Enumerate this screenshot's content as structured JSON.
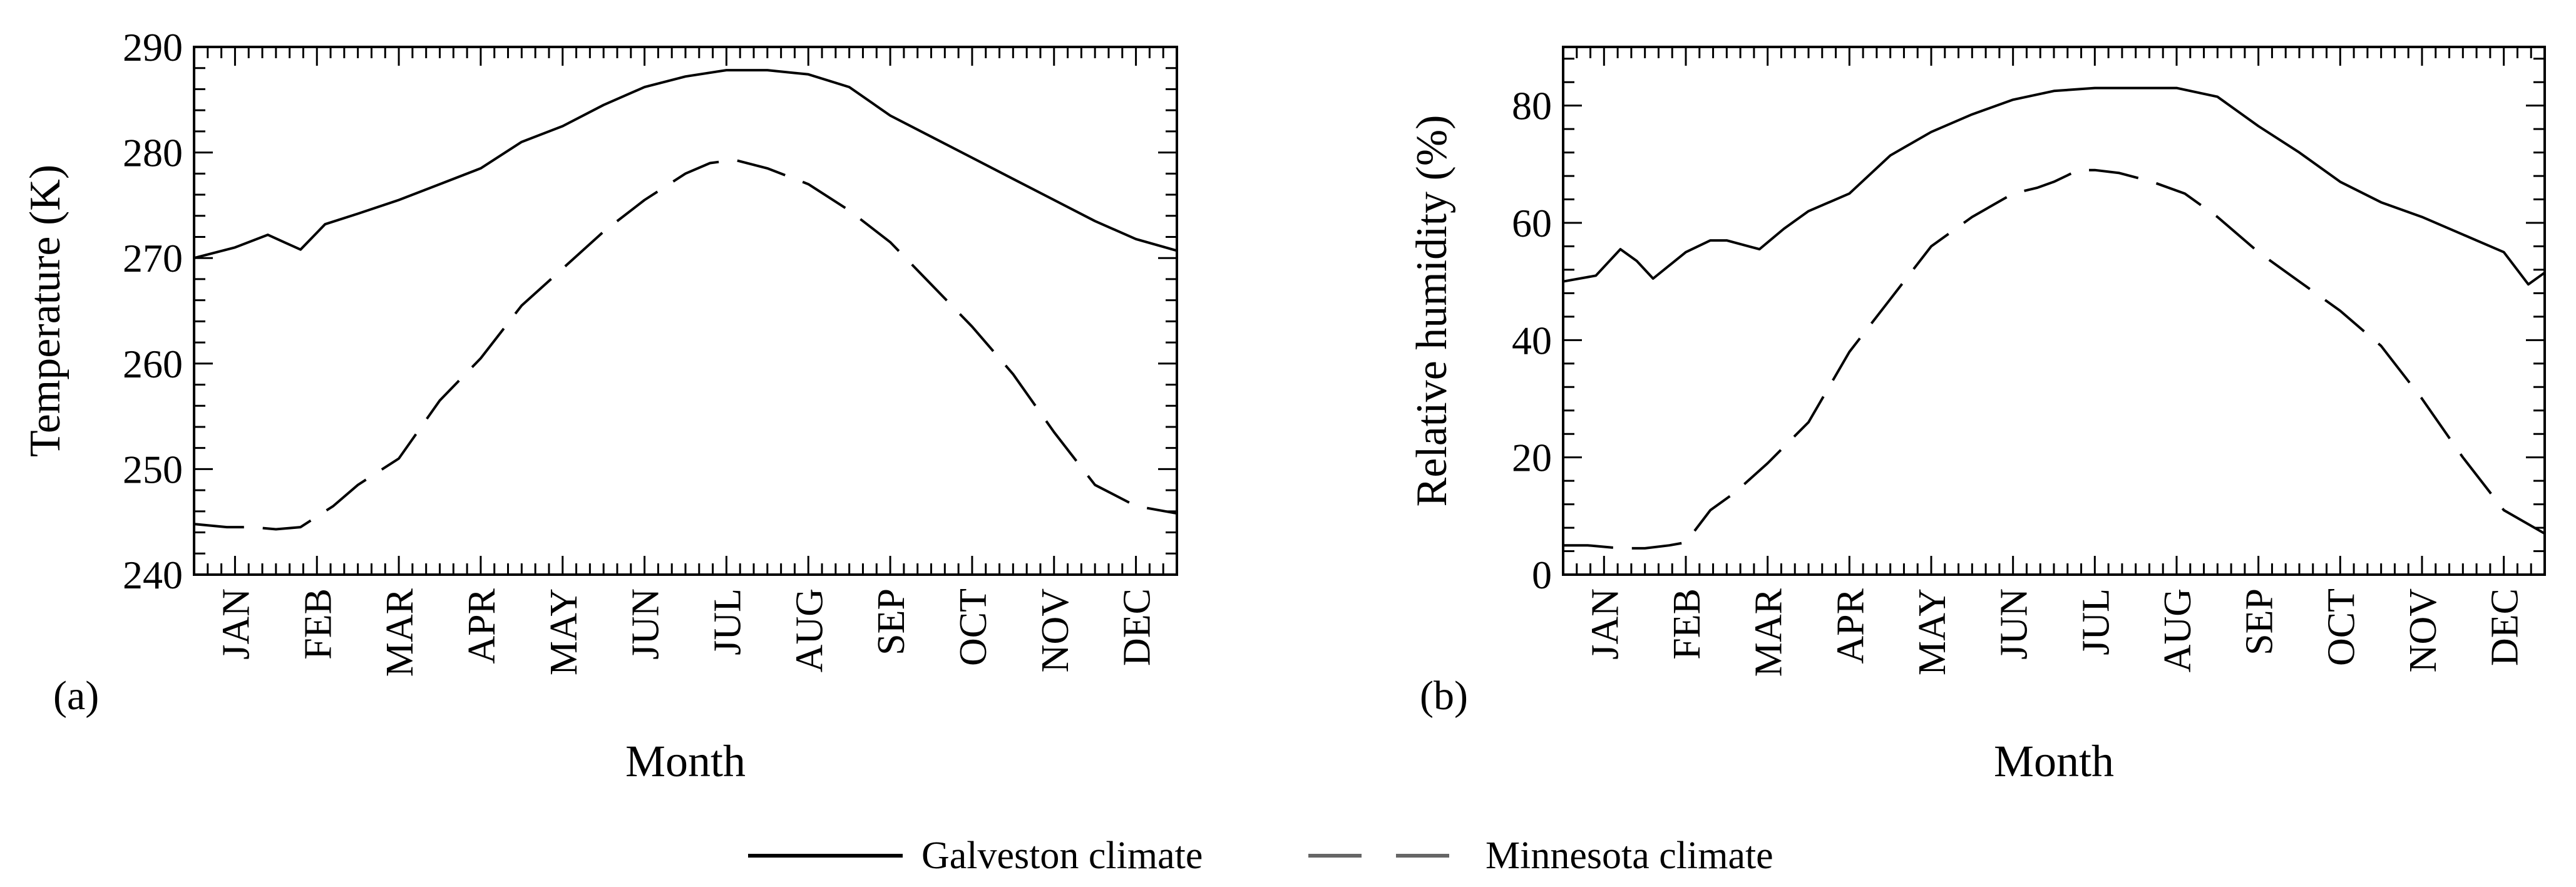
{
  "chart_data": [
    {
      "type": "line",
      "panel_label": "(a)",
      "xlabel": "Month",
      "ylabel": "Temperature (K)",
      "categories": [
        "JAN",
        "FEB",
        "MAR",
        "APR",
        "MAY",
        "JUN",
        "JUL",
        "AUG",
        "SEP",
        "OCT",
        "NOV",
        "DEC"
      ],
      "ylim": [
        240,
        290
      ],
      "yticks": [
        "240",
        "250",
        "260",
        "270",
        "280",
        "290"
      ],
      "series": [
        {
          "name": "Galveston climate",
          "style": "solid",
          "x": [
            0,
            0.5,
            0.9,
            1.1,
            1.3,
            1.6,
            2.0,
            2.5,
            3.0,
            3.5,
            4.0,
            4.5,
            5.0,
            5.5,
            6.0,
            6.5,
            7.0,
            7.5,
            8.0,
            8.5,
            9.0,
            9.5,
            10.0,
            10.5,
            11.0,
            11.5,
            12.0
          ],
          "values": [
            270,
            271,
            272.2,
            271.5,
            270.8,
            273.2,
            274.2,
            275.5,
            277,
            278.5,
            281,
            282.5,
            284.5,
            286.2,
            287.2,
            287.8,
            287.8,
            287.4,
            286.2,
            283.5,
            281.5,
            279.5,
            277.5,
            275.5,
            273.5,
            271.8,
            270.7
          ]
        },
        {
          "name": "Minnesota climate",
          "style": "dashed",
          "x": [
            0,
            0.4,
            0.7,
            1.0,
            1.3,
            1.7,
            2.0,
            2.5,
            3.0,
            3.5,
            4.0,
            4.5,
            5.0,
            5.5,
            6.0,
            6.3,
            6.6,
            7.0,
            7.5,
            8.0,
            8.5,
            9.0,
            9.5,
            10.0,
            10.5,
            11.0,
            11.5,
            12.0
          ],
          "values": [
            244.8,
            244.5,
            244.5,
            244.3,
            244.5,
            246.5,
            248.5,
            251,
            256.5,
            260.5,
            265.5,
            269,
            272.5,
            275.5,
            278,
            279,
            279.3,
            278.5,
            277,
            274.5,
            271.5,
            267.5,
            263.5,
            259,
            253.5,
            248.5,
            246.5,
            245.8
          ]
        }
      ]
    },
    {
      "type": "line",
      "panel_label": "(b)",
      "xlabel": "Month",
      "ylabel": "Relative humidity (%)",
      "categories": [
        "JAN",
        "FEB",
        "MAR",
        "APR",
        "MAY",
        "JUN",
        "JUL",
        "AUG",
        "SEP",
        "OCT",
        "NOV",
        "DEC"
      ],
      "ylim": [
        0,
        90
      ],
      "yticks": [
        "0",
        "20",
        "40",
        "60",
        "80"
      ],
      "series": [
        {
          "name": "Galveston climate",
          "style": "solid",
          "x": [
            0,
            0.4,
            0.7,
            0.9,
            1.1,
            1.5,
            1.8,
            2.0,
            2.4,
            2.7,
            3.0,
            3.5,
            4.0,
            4.5,
            5.0,
            5.5,
            6.0,
            6.5,
            7.0,
            7.5,
            8.0,
            8.5,
            9.0,
            9.5,
            10.0,
            10.5,
            11.0,
            11.5,
            11.8,
            12.0
          ],
          "values": [
            50,
            51,
            55.5,
            53.5,
            50.5,
            55,
            57,
            57,
            55.5,
            59,
            62,
            65,
            71.5,
            75.5,
            78.5,
            81,
            82.5,
            83,
            83,
            83,
            81.5,
            76.5,
            72,
            67,
            63.5,
            61,
            58,
            55,
            49.5,
            51.5
          ]
        },
        {
          "name": "Minnesota climate",
          "style": "dashed",
          "x": [
            0,
            0.3,
            0.7,
            1.0,
            1.3,
            1.5,
            1.8,
            2.1,
            2.5,
            3.0,
            3.5,
            4.0,
            4.5,
            5.0,
            5.5,
            5.8,
            6.0,
            6.3,
            6.5,
            6.8,
            7.2,
            7.6,
            8.0,
            8.5,
            9.0,
            9.5,
            10.0,
            10.5,
            11.0,
            11.5,
            12.0
          ],
          "values": [
            5,
            5,
            4.5,
            4.5,
            5,
            5.5,
            11,
            14,
            19,
            26,
            38,
            47,
            56,
            61,
            65,
            66,
            67,
            69,
            69,
            68.5,
            67,
            65,
            61,
            55,
            50,
            45,
            39,
            30,
            20,
            11,
            7
          ]
        }
      ]
    }
  ],
  "legend": [
    {
      "label": "Galveston climate",
      "style": "solid"
    },
    {
      "label": "Minnesota climate",
      "style": "dashed"
    }
  ],
  "colors": {
    "line": "#000000",
    "legend_dash": "#666666"
  }
}
